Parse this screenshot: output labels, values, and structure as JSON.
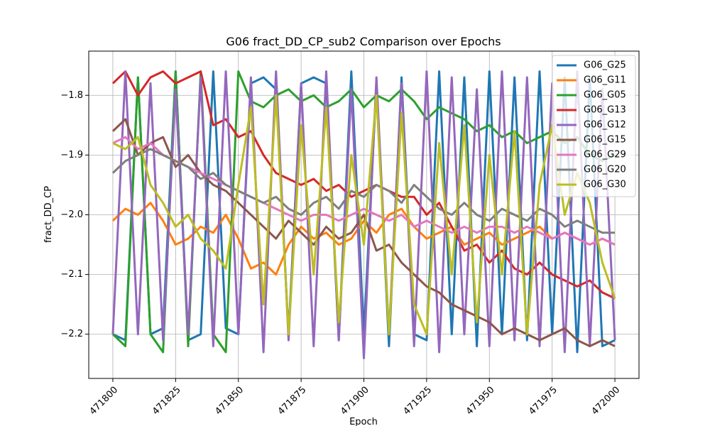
{
  "chart_data": {
    "type": "line",
    "title": "G06 fract_DD_CP_sub2 Comparison over Epochs",
    "x_label": "Epoch",
    "y_label": "fract_DD_CP",
    "x": [
      471800,
      471805,
      471810,
      471815,
      471820,
      471825,
      471830,
      471835,
      471840,
      471845,
      471850,
      471855,
      471860,
      471865,
      471870,
      471875,
      471880,
      471885,
      471890,
      471895,
      471900,
      471905,
      471910,
      471915,
      471920,
      471925,
      471930,
      471935,
      471940,
      471945,
      471950,
      471955,
      471960,
      471965,
      471970,
      471975,
      471980,
      471985,
      471990,
      471995,
      472000
    ],
    "xlim": [
      471790.4,
      472009.6
    ],
    "xticks": [
      471800,
      471825,
      471850,
      471875,
      471900,
      471925,
      471950,
      471975,
      472000
    ],
    "ylim": [
      -2.274,
      -1.726
    ],
    "yticks": [
      {
        "value": -2.2,
        "label": "−2.2"
      },
      {
        "value": -2.1,
        "label": "−2.1"
      },
      {
        "value": -2.0,
        "label": "−2.0"
      },
      {
        "value": -1.9,
        "label": "−1.9"
      },
      {
        "value": -1.8,
        "label": "−1.8"
      }
    ],
    "grid": true,
    "legend": "upper right",
    "series": [
      {
        "name": "G06_G25",
        "color": "#1f77b4",
        "values": [
          -2.2,
          -2.21,
          -1.77,
          -2.2,
          -2.19,
          -1.76,
          -2.21,
          -2.2,
          -1.76,
          -2.19,
          -2.2,
          -1.78,
          -1.77,
          -1.79,
          -2.2,
          -1.78,
          -1.77,
          -1.78,
          -2.21,
          -1.76,
          -2.2,
          -1.78,
          -2.22,
          -1.77,
          -2.2,
          -2.21,
          -1.76,
          -2.2,
          -1.77,
          -2.22,
          -1.76,
          -2.2,
          -1.77,
          -2.21,
          -1.76,
          -2.2,
          -1.77,
          -2.23,
          -1.77,
          -2.22,
          -2.21
        ]
      },
      {
        "name": "G06_G11",
        "color": "#ff7f0e",
        "values": [
          -2.01,
          -1.99,
          -2.0,
          -1.98,
          -2.01,
          -2.05,
          -2.04,
          -2.02,
          -2.03,
          -2.0,
          -2.04,
          -2.09,
          -2.08,
          -2.1,
          -2.05,
          -2.02,
          -2.04,
          -2.03,
          -2.05,
          -2.04,
          -2.01,
          -2.03,
          -2.0,
          -1.99,
          -2.02,
          -2.04,
          -2.03,
          -2.02,
          -2.05,
          -2.04,
          -2.03,
          -2.05,
          -2.04,
          -2.03,
          -2.02,
          -2.04,
          -2.03,
          -2.04,
          -2.05,
          -2.04,
          -2.05
        ]
      },
      {
        "name": "G06_G05",
        "color": "#2ca02c",
        "values": [
          -2.2,
          -2.22,
          -1.77,
          -2.2,
          -2.23,
          -1.76,
          -2.22,
          -1.76,
          -2.2,
          -2.23,
          -1.76,
          -1.81,
          -1.82,
          -1.8,
          -1.79,
          -1.81,
          -1.8,
          -1.82,
          -1.81,
          -1.79,
          -1.82,
          -1.8,
          -1.81,
          -1.79,
          -1.81,
          -1.84,
          -1.82,
          -1.83,
          -1.84,
          -1.86,
          -1.85,
          -1.87,
          -1.86,
          -1.88,
          -1.87,
          -1.86,
          -1.88,
          -1.87,
          -1.9,
          -1.91,
          -1.9
        ]
      },
      {
        "name": "G06_G13",
        "color": "#d62728",
        "values": [
          -1.78,
          -1.76,
          -1.8,
          -1.77,
          -1.76,
          -1.78,
          -1.77,
          -1.76,
          -1.85,
          -1.84,
          -1.87,
          -1.86,
          -1.9,
          -1.93,
          -1.94,
          -1.95,
          -1.94,
          -1.96,
          -1.95,
          -1.97,
          -1.96,
          -1.95,
          -1.96,
          -1.97,
          -1.97,
          -2.0,
          -1.98,
          -2.02,
          -2.06,
          -2.05,
          -2.08,
          -2.06,
          -2.09,
          -2.1,
          -2.08,
          -2.1,
          -2.11,
          -2.12,
          -2.11,
          -2.13,
          -2.14
        ]
      },
      {
        "name": "G06_G12",
        "color": "#9467bd",
        "values": [
          -2.2,
          -1.76,
          -2.2,
          -1.78,
          -2.21,
          -1.79,
          -2.2,
          -1.77,
          -2.22,
          -1.76,
          -2.2,
          -1.77,
          -2.23,
          -1.76,
          -2.21,
          -1.78,
          -2.22,
          -1.76,
          -2.21,
          -1.79,
          -2.24,
          -1.77,
          -2.2,
          -1.78,
          -2.22,
          -1.76,
          -2.23,
          -1.77,
          -2.2,
          -1.79,
          -2.22,
          -1.76,
          -2.21,
          -1.77,
          -2.22,
          -1.78,
          -2.23,
          -1.76,
          -2.22,
          -1.79,
          -2.21
        ]
      },
      {
        "name": "G06_G15",
        "color": "#8c564b",
        "values": [
          -1.86,
          -1.84,
          -1.9,
          -1.88,
          -1.87,
          -1.92,
          -1.9,
          -1.93,
          -1.95,
          -1.96,
          -1.98,
          -2.0,
          -2.02,
          -2.04,
          -2.01,
          -2.03,
          -2.05,
          -2.02,
          -2.04,
          -2.03,
          -2.0,
          -2.06,
          -2.05,
          -2.08,
          -2.1,
          -2.12,
          -2.13,
          -2.15,
          -2.16,
          -2.17,
          -2.18,
          -2.2,
          -2.19,
          -2.2,
          -2.21,
          -2.2,
          -2.19,
          -2.21,
          -2.22,
          -2.21,
          -2.22
        ]
      },
      {
        "name": "G06_G29",
        "color": "#e377c2",
        "values": [
          -1.88,
          -1.87,
          -1.89,
          -1.88,
          -1.9,
          -1.91,
          -1.92,
          -1.93,
          -1.94,
          -1.95,
          -1.96,
          -1.97,
          -1.98,
          -1.99,
          -2.0,
          -2.01,
          -2.0,
          -2.0,
          -2.01,
          -2.0,
          -1.99,
          -2.0,
          -2.01,
          -2.0,
          -2.02,
          -2.01,
          -2.02,
          -2.03,
          -2.02,
          -2.03,
          -2.02,
          -2.02,
          -2.03,
          -2.02,
          -2.03,
          -2.04,
          -2.03,
          -2.04,
          -2.05,
          -2.04,
          -2.05
        ]
      },
      {
        "name": "G06_G20",
        "color": "#7f7f7f",
        "values": [
          -1.93,
          -1.91,
          -1.9,
          -1.89,
          -1.9,
          -1.91,
          -1.92,
          -1.94,
          -1.93,
          -1.95,
          -1.96,
          -1.97,
          -1.98,
          -1.97,
          -1.99,
          -2.0,
          -1.98,
          -1.97,
          -1.99,
          -1.96,
          -1.97,
          -1.95,
          -1.96,
          -1.98,
          -1.95,
          -1.97,
          -1.99,
          -2.0,
          -1.98,
          -2.0,
          -2.01,
          -1.99,
          -2.0,
          -2.01,
          -1.99,
          -2.0,
          -2.02,
          -2.01,
          -2.02,
          -2.03,
          -2.03
        ]
      },
      {
        "name": "G06_G30",
        "color": "#bcbd22",
        "values": [
          -1.88,
          -1.89,
          -1.87,
          -1.95,
          -1.98,
          -2.02,
          -2.0,
          -2.04,
          -2.06,
          -2.09,
          -1.95,
          -1.82,
          -2.15,
          -1.8,
          -2.2,
          -1.85,
          -2.1,
          -1.82,
          -2.18,
          -1.9,
          -2.05,
          -1.8,
          -2.2,
          -1.83,
          -2.15,
          -2.2,
          -1.88,
          -2.1,
          -1.85,
          -2.18,
          -1.9,
          -2.1,
          -1.86,
          -2.2,
          -1.95,
          -1.85,
          -2.0,
          -1.93,
          -1.98,
          -2.08,
          -2.14
        ]
      }
    ]
  }
}
